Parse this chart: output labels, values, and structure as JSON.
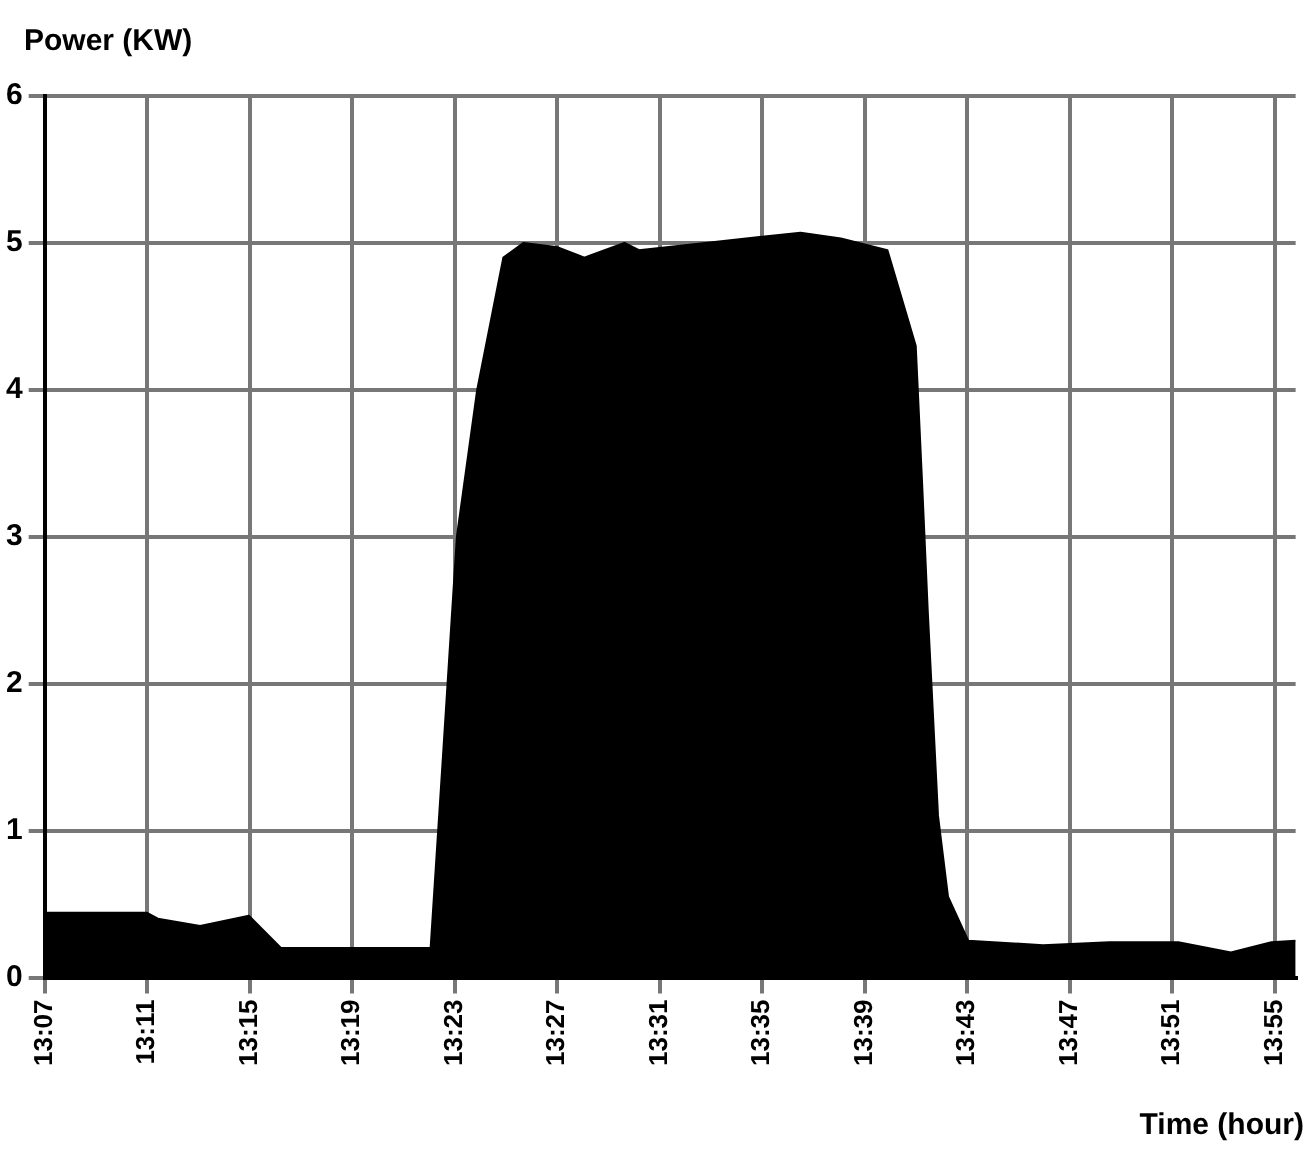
{
  "chart_data": {
    "type": "area",
    "ylabel": "Power (KW)",
    "xlabel": "Time (hour)",
    "x": [
      13.1167,
      13.1833,
      13.1903,
      13.2178,
      13.2495,
      13.2705,
      13.3677,
      13.3757,
      13.3848,
      13.398,
      13.415,
      13.4282,
      13.4505,
      13.4677,
      13.4938,
      13.5032,
      13.5465,
      13.6083,
      13.6345,
      13.6648,
      13.6832,
      13.6872,
      13.691,
      13.6977,
      13.7042,
      13.7173,
      13.766,
      13.8093,
      13.854,
      13.8882,
      13.9145,
      13.9303
    ],
    "series": [
      {
        "color": "#000000",
        "values": [
          0.44,
          0.44,
          0.4,
          0.35,
          0.42,
          0.2,
          0.2,
          1.5,
          3.0,
          4.0,
          4.9,
          5.0,
          4.97,
          4.9,
          5.0,
          4.95,
          5.0,
          5.07,
          5.03,
          4.95,
          4.3,
          3.4,
          2.5,
          1.1,
          0.55,
          0.25,
          0.22,
          0.24,
          0.24,
          0.17,
          0.24,
          0.25
        ]
      }
    ],
    "xlim": [
      13.1167,
      13.9303
    ],
    "xticks": [
      {
        "value": 13.1167,
        "label": "13:07"
      },
      {
        "value": 13.1833,
        "label": "13:11"
      },
      {
        "value": 13.25,
        "label": "13:15"
      },
      {
        "value": 13.3167,
        "label": "13:19"
      },
      {
        "value": 13.3833,
        "label": "13:23"
      },
      {
        "value": 13.45,
        "label": "13:27"
      },
      {
        "value": 13.5167,
        "label": "13:31"
      },
      {
        "value": 13.5833,
        "label": "13:35"
      },
      {
        "value": 13.65,
        "label": "13:39"
      },
      {
        "value": 13.7167,
        "label": "13:43"
      },
      {
        "value": 13.7833,
        "label": "13:47"
      },
      {
        "value": 13.85,
        "label": "13:51"
      },
      {
        "value": 13.9167,
        "label": "13:55"
      }
    ],
    "ylim": [
      0,
      6
    ],
    "yticks": [
      0,
      1,
      2,
      3,
      4,
      5,
      6
    ],
    "grid": true,
    "legend": false
  }
}
